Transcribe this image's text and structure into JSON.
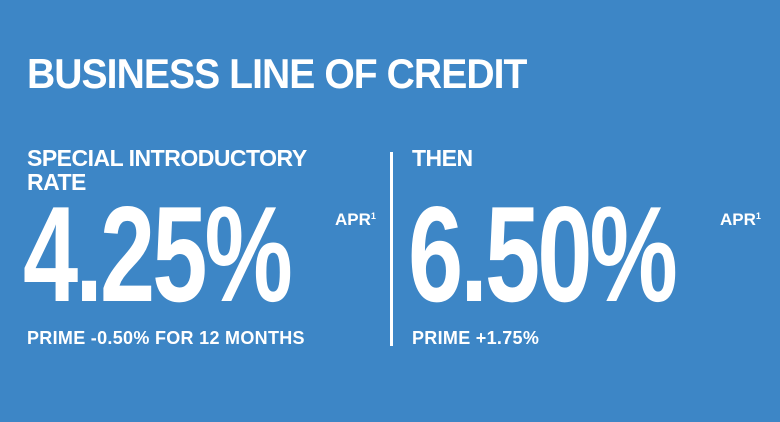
{
  "title": "BUSINESS LINE OF CREDIT",
  "intro": {
    "heading": "SPECIAL INTRODUCTORY RATE",
    "rate": "4.25%",
    "apr_label": "APR",
    "footnote": "1",
    "note": "PRIME -0.50% FOR 12 MONTHS"
  },
  "then": {
    "heading": "THEN",
    "rate": "6.50%",
    "apr_label": "APR",
    "footnote": "1",
    "note": "PRIME +1.75%"
  },
  "colors": {
    "background": "#3d86c6",
    "text": "#ffffff"
  }
}
